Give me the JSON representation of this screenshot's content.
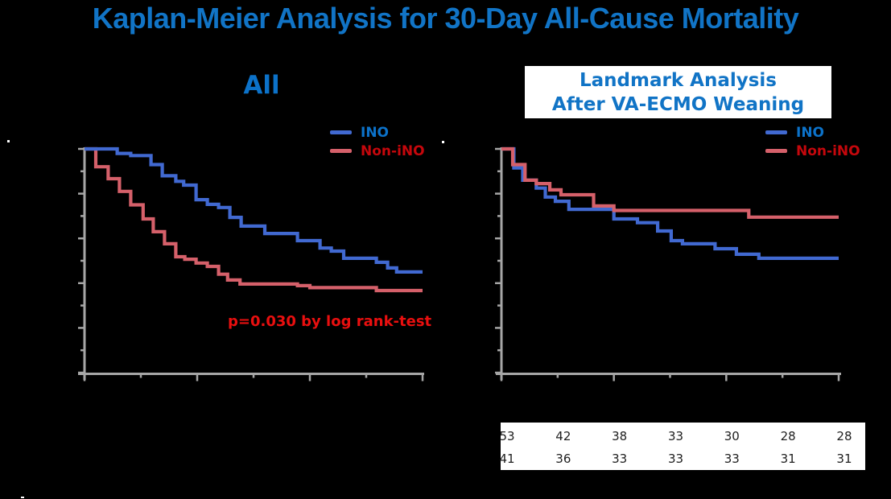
{
  "title": "Kaplan-Meier Analysis for 30-Day All-Cause Mortality",
  "colors": {
    "background": "#000000",
    "title_text": "#1174C6",
    "curve_ino": "#4169D1",
    "curve_non_ino": "#D5606A",
    "legend_ino_text": "#0C72C9",
    "legend_non_ino_text": "#C5070C",
    "pvalue_text": "#E90F0F",
    "axis": "#A6A6A6",
    "box_bg": "#FFFFFF",
    "table_text": "#202020"
  },
  "left_panel": {
    "title": "All",
    "pvalue_text": "p=0.030 by log rank-test",
    "legend": [
      {
        "label": "INO",
        "color": "#4169D1"
      },
      {
        "label": "Non-iNO",
        "color": "#D5606A"
      }
    ]
  },
  "right_panel": {
    "header_line1": "Landmark Analysis",
    "header_line2": "After VA-ECMO Weaning",
    "legend": [
      {
        "label": "INO",
        "color": "#4169D1"
      },
      {
        "label": "Non-iNO",
        "color": "#D5606A"
      }
    ]
  },
  "chart_data": [
    {
      "type": "line",
      "variant": "kaplan_meier_step",
      "title": "All",
      "annotation": "p=0.030 by log rank-test",
      "legend_position": "upper right",
      "x_axis": {
        "min": 0,
        "max": 30,
        "unit": "days",
        "major_ticks": [
          0,
          10,
          20,
          30
        ],
        "minor_ticks": [
          5,
          15,
          25
        ],
        "tick_labels_visible": false
      },
      "y_axis": {
        "min": 0,
        "max": 1,
        "major_ticks": [
          0,
          0.2,
          0.4,
          0.6,
          0.8,
          1.0
        ],
        "minor_ticks": [
          0.1,
          0.3,
          0.5,
          0.7,
          0.9
        ],
        "tick_labels_visible": false
      },
      "series": [
        {
          "name": "INO",
          "color": "#4169D1",
          "step_times": [
            0,
            2.9,
            4.1,
            5.9,
            6.9,
            8.1,
            8.8,
            9.9,
            10.9,
            11.9,
            12.9,
            13.9,
            16,
            18.9,
            20.9,
            21.9,
            23,
            25.9,
            26.9,
            27.7,
            30
          ],
          "step_survival": [
            1,
            0.98,
            0.97,
            0.93,
            0.88,
            0.855,
            0.838,
            0.773,
            0.752,
            0.738,
            0.694,
            0.655,
            0.622,
            0.59,
            0.557,
            0.543,
            0.511,
            0.493,
            0.468,
            0.45,
            0.45
          ]
        },
        {
          "name": "Non-iNO",
          "color": "#D5606A",
          "step_times": [
            0,
            1,
            2.1,
            3.1,
            4.1,
            5.2,
            6.1,
            7.1,
            8.1,
            8.9,
            9.9,
            10.9,
            11.9,
            12.7,
            13.8,
            18.9,
            20,
            25.9,
            30
          ],
          "step_survival": [
            1,
            0.92,
            0.867,
            0.81,
            0.75,
            0.687,
            0.63,
            0.576,
            0.518,
            0.507,
            0.49,
            0.475,
            0.44,
            0.414,
            0.396,
            0.389,
            0.38,
            0.367,
            0.367
          ]
        }
      ]
    },
    {
      "type": "line",
      "variant": "kaplan_meier_step",
      "title": "Landmark Analysis After VA-ECMO Weaning",
      "legend_position": "upper right",
      "x_axis": {
        "min": 0,
        "max": 30,
        "unit": "days",
        "major_ticks": [
          0,
          10,
          20,
          30
        ],
        "minor_ticks": [
          5,
          15,
          25
        ],
        "tick_labels_visible": false
      },
      "y_axis": {
        "min": 0,
        "max": 1,
        "major_ticks": [
          0,
          0.2,
          0.4,
          0.6,
          0.8,
          1.0
        ],
        "minor_ticks": [
          0.1,
          0.3,
          0.5,
          0.7,
          0.9
        ],
        "tick_labels_visible": false
      },
      "series": [
        {
          "name": "INO",
          "color": "#4169D1",
          "step_times": [
            0,
            1.1,
            1.9,
            3.1,
            3.9,
            4.8,
            6,
            10,
            12.1,
            13.9,
            15.1,
            16.1,
            19,
            20.9,
            22.9,
            30
          ],
          "step_survival": [
            1,
            0.915,
            0.86,
            0.825,
            0.785,
            0.766,
            0.73,
            0.687,
            0.67,
            0.633,
            0.59,
            0.576,
            0.554,
            0.529,
            0.511,
            0.511
          ]
        },
        {
          "name": "Non-iNO",
          "color": "#D5606A",
          "step_times": [
            0,
            1,
            2.1,
            3.1,
            4.3,
            5.3,
            8.2,
            10,
            22,
            30
          ],
          "step_survival": [
            1,
            0.93,
            0.86,
            0.845,
            0.817,
            0.795,
            0.745,
            0.725,
            0.695,
            0.695
          ]
        }
      ],
      "at_risk_table": {
        "aligned_to_days": [
          0,
          5,
          10,
          15,
          20,
          25,
          30
        ],
        "rows": [
          [
            "53",
            "42",
            "38",
            "33",
            "30",
            "28",
            "28"
          ],
          [
            "41",
            "36",
            "33",
            "33",
            "33",
            "31",
            "31"
          ]
        ]
      }
    }
  ]
}
